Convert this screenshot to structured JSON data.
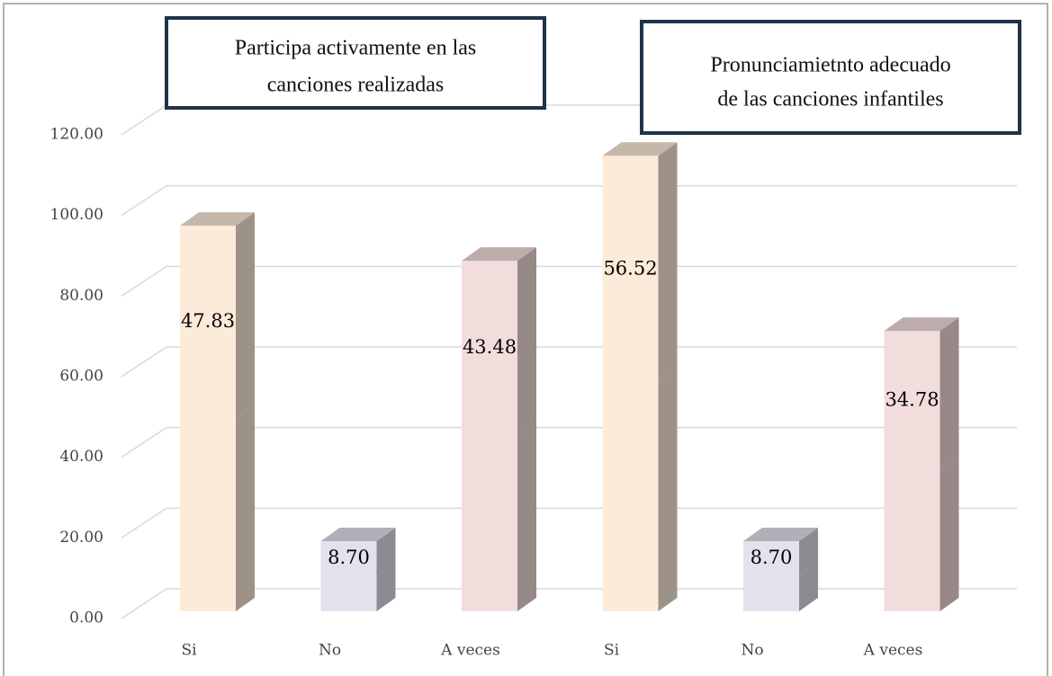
{
  "chart_data": {
    "type": "bar3d_stacked",
    "annotations": [
      {
        "lines": [
          "Participa activamente en las",
          "canciones realizadas"
        ]
      },
      {
        "lines": [
          "Pronunciamietnto adecuado",
          "de las canciones infantiles"
        ]
      }
    ],
    "categories": [
      "Si",
      "No",
      "A veces",
      "Si",
      "No",
      "A veces"
    ],
    "colors": [
      "#fdebd9",
      "#e4e0ec",
      "#f2dddc",
      "#fdebd9",
      "#e4e0ec",
      "#f2dddc"
    ],
    "series": [
      {
        "values": [
          47.83,
          8.7,
          43.48,
          56.52,
          8.7,
          34.78
        ]
      },
      {
        "values": [
          47.83,
          8.7,
          43.48,
          56.52,
          8.7,
          34.78
        ],
        "value_labels": [
          "47.83",
          "8.70",
          "43.48",
          "56.52",
          "8.70",
          "34.78"
        ]
      }
    ],
    "ylim": [
      0,
      120
    ],
    "yticks": [
      {
        "value": 0,
        "label": "0.00"
      },
      {
        "value": 20,
        "label": "20.00"
      },
      {
        "value": 40,
        "label": "40.00"
      },
      {
        "value": 60,
        "label": "60.00"
      },
      {
        "value": 80,
        "label": "80.00"
      },
      {
        "value": 100,
        "label": "100.00"
      },
      {
        "value": 120,
        "label": "120.00"
      }
    ],
    "grid": true
  }
}
